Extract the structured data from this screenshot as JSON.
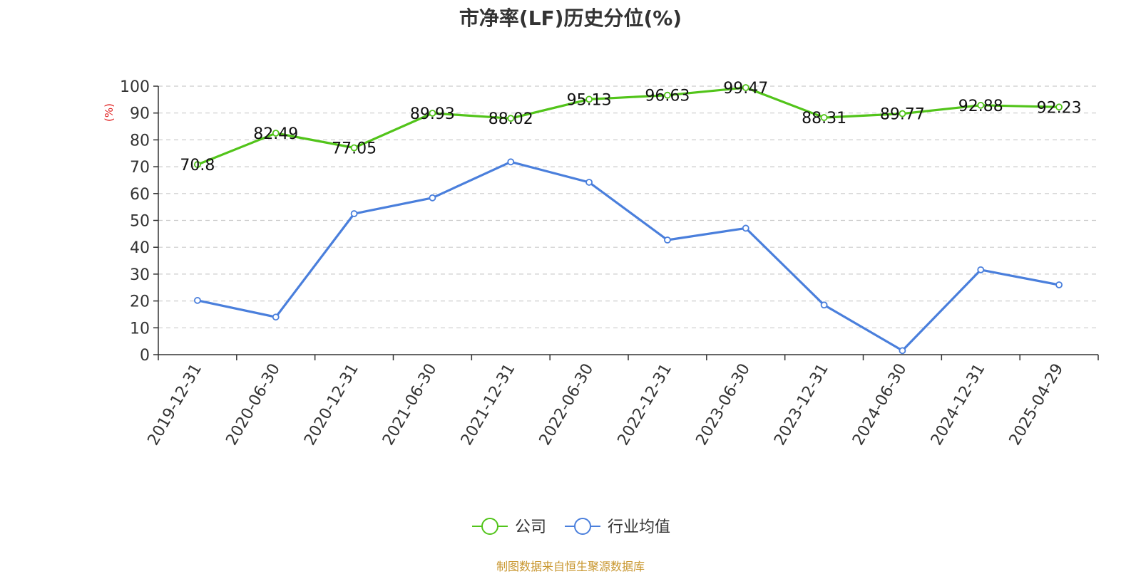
{
  "chart_data": {
    "type": "line",
    "title": "市净率(LF)历史分位(%)",
    "ylabel": "(%)",
    "ylim": [
      0,
      100
    ],
    "yticks": [
      0,
      10,
      20,
      30,
      40,
      50,
      60,
      70,
      80,
      90,
      100
    ],
    "grid": true,
    "legend_position": "bottom",
    "categories": [
      "2019-12-31",
      "2020-06-30",
      "2020-12-31",
      "2021-06-30",
      "2021-12-31",
      "2022-06-30",
      "2022-12-31",
      "2023-06-30",
      "2023-12-31",
      "2024-06-30",
      "2024-12-31",
      "2025-04-29"
    ],
    "series": [
      {
        "name": "公司",
        "color": "#52c41a",
        "show_labels": true,
        "values": [
          70.8,
          82.49,
          77.05,
          89.93,
          88.02,
          95.13,
          96.63,
          99.47,
          88.31,
          89.77,
          92.88,
          92.23
        ]
      },
      {
        "name": "行业均值",
        "color": "#4a7fdc",
        "show_labels": false,
        "values": [
          20.2,
          14.0,
          52.5,
          58.4,
          71.8,
          64.2,
          42.7,
          47.1,
          18.5,
          1.5,
          31.6,
          26.0
        ]
      }
    ]
  },
  "footer": {
    "source": "制图数据来自恒生聚源数据库",
    "color": "#c8962e"
  },
  "axis_label_color": "#e02020"
}
